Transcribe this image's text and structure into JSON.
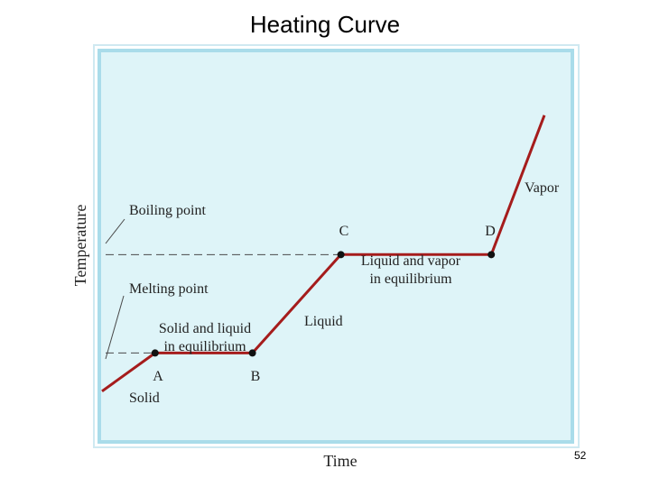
{
  "slide": {
    "title": "Heating Curve",
    "page_number": "52"
  },
  "colors": {
    "panel_background": "#def4f8",
    "panel_border": "#a9dcea",
    "panel_outer_border": "#cfe9f1",
    "curve": "#a51c1c",
    "dashed": "#4a4a4a",
    "text": "#222222"
  },
  "chart_data": {
    "type": "line",
    "title": "",
    "xlabel": "Time",
    "ylabel": "Temperature",
    "grid": false,
    "legend": "none",
    "xlim": [
      0,
      100
    ],
    "ylim": [
      0,
      100
    ],
    "series": [
      {
        "name": "",
        "points": [
          {
            "x": 0,
            "y": 6
          },
          {
            "x": 12,
            "y": 20
          },
          {
            "x": 34,
            "y": 20
          },
          {
            "x": 54,
            "y": 56
          },
          {
            "x": 88,
            "y": 56
          },
          {
            "x": 100,
            "y": 107
          }
        ]
      }
    ],
    "key_points": [
      {
        "label": "A",
        "x": 12,
        "y": 20
      },
      {
        "label": "B",
        "x": 34,
        "y": 20
      },
      {
        "label": "C",
        "x": 54,
        "y": 56
      },
      {
        "label": "D",
        "x": 88,
        "y": 56
      }
    ],
    "reference_lines": [
      {
        "label": "Boiling point",
        "y": 56
      },
      {
        "label": "Melting point",
        "y": 20
      }
    ],
    "annotations": {
      "solid": "Solid",
      "solid_liquid_line1": "Solid and liquid",
      "solid_liquid_line2": "in equilibrium",
      "liquid": "Liquid",
      "liquid_vapor_line1": "Liquid and vapor",
      "liquid_vapor_line2": "in equilibrium",
      "vapor": "Vapor"
    }
  }
}
